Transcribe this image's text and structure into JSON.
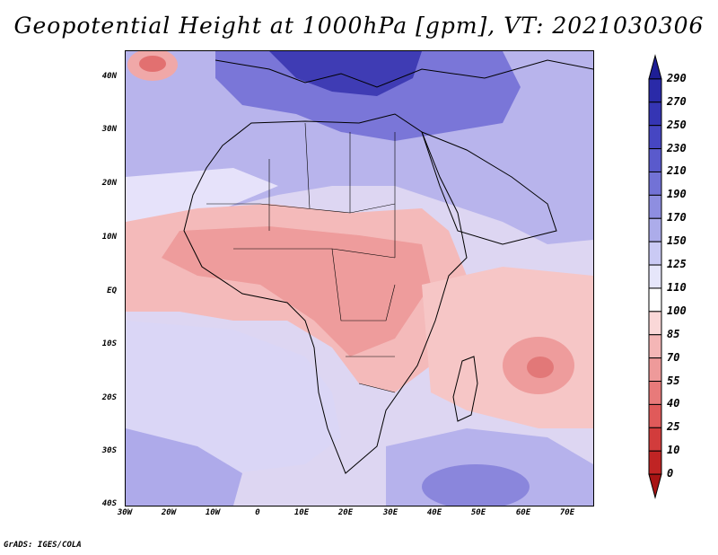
{
  "title": "Geopotential Height at 1000hPa [gpm], VT: 2021030306",
  "credit": "GrADS: IGES/COLA",
  "map": {
    "variable": "Geopotential Height at 1000hPa",
    "units": "gpm",
    "valid_time": "2021030306",
    "lon_range": [
      -30,
      77
    ],
    "lat_range": [
      -40,
      45
    ],
    "lat_ticks": [
      "40N",
      "30N",
      "20N",
      "10N",
      "EQ",
      "10S",
      "20S",
      "30S",
      "40S"
    ],
    "lon_ticks": [
      "30W",
      "20W",
      "10W",
      "0",
      "10E",
      "20E",
      "30E",
      "40E",
      "50E",
      "60E",
      "70E"
    ]
  },
  "colorbar": {
    "labels": [
      "290",
      "270",
      "250",
      "230",
      "210",
      "190",
      "170",
      "150",
      "125",
      "110",
      "100",
      "85",
      "70",
      "55",
      "40",
      "25",
      "10",
      "0"
    ],
    "colors": [
      "#1e1e96",
      "#2a2aa8",
      "#3535b4",
      "#4646c2",
      "#5a5acc",
      "#7272d6",
      "#8e8ee0",
      "#acacea",
      "#cacaf4",
      "#e6e6fa",
      "#ffffff",
      "#fad8d8",
      "#f4b6b6",
      "#ee9a9a",
      "#e87a7a",
      "#e05a5a",
      "#d23c3c",
      "#c02424",
      "#a81414"
    ]
  }
}
